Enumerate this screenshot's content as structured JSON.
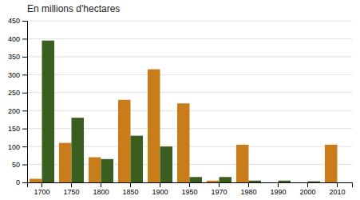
{
  "chart_data": {
    "type": "bar",
    "title": "En millions d'hectares",
    "categories": [
      "1700",
      "1750",
      "1800",
      "1850",
      "1900",
      "1950",
      "1970",
      "1980",
      "1990",
      "2000",
      "2010"
    ],
    "series": [
      {
        "color": "#c87c1a",
        "values": [
          10,
          110,
          70,
          230,
          315,
          220,
          5,
          105,
          0,
          0,
          105
        ]
      },
      {
        "color": "#3a5e1f",
        "values": [
          395,
          180,
          65,
          130,
          100,
          15,
          15,
          5,
          5,
          3,
          0
        ]
      }
    ],
    "ylim": [
      0,
      450
    ],
    "yticks": [
      0,
      50,
      100,
      150,
      200,
      250,
      300,
      350,
      400,
      450
    ],
    "grid": true
  }
}
